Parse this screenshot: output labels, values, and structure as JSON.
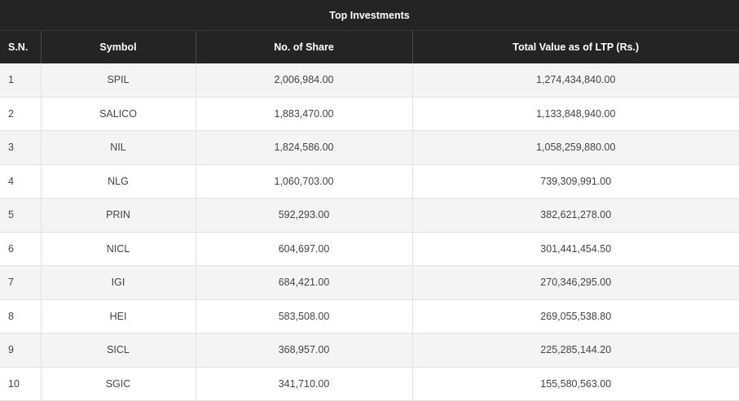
{
  "table": {
    "title": "Top Investments",
    "headers": {
      "sn": "S.N.",
      "symbol": "Symbol",
      "shares": "No. of Share",
      "value": "Total Value as of LTP (Rs.)"
    },
    "rows": [
      {
        "sn": "1",
        "symbol": "SPIL",
        "shares": "2,006,984.00",
        "value": "1,274,434,840.00"
      },
      {
        "sn": "2",
        "symbol": "SALICO",
        "shares": "1,883,470.00",
        "value": "1,133,848,940.00"
      },
      {
        "sn": "3",
        "symbol": "NIL",
        "shares": "1,824,586.00",
        "value": "1,058,259,880.00"
      },
      {
        "sn": "4",
        "symbol": "NLG",
        "shares": "1,060,703.00",
        "value": "739,309,991.00"
      },
      {
        "sn": "5",
        "symbol": "PRIN",
        "shares": "592,293.00",
        "value": "382,621,278.00"
      },
      {
        "sn": "6",
        "symbol": "NICL",
        "shares": "604,697.00",
        "value": "301,441,454.50"
      },
      {
        "sn": "7",
        "symbol": "IGI",
        "shares": "684,421.00",
        "value": "270,346,295.00"
      },
      {
        "sn": "8",
        "symbol": "HEI",
        "shares": "583,508.00",
        "value": "269,055,538.80"
      },
      {
        "sn": "9",
        "symbol": "SICL",
        "shares": "368,957.00",
        "value": "225,285,144.20"
      },
      {
        "sn": "10",
        "symbol": "SGIC",
        "shares": "341,710.00",
        "value": "155,580,563.00"
      }
    ]
  },
  "colors": {
    "header_bg": "#242424",
    "header_text": "#ffffff",
    "row_alt_bg": "#f4f4f4",
    "row_bg": "#ffffff",
    "cell_text": "#444444"
  }
}
